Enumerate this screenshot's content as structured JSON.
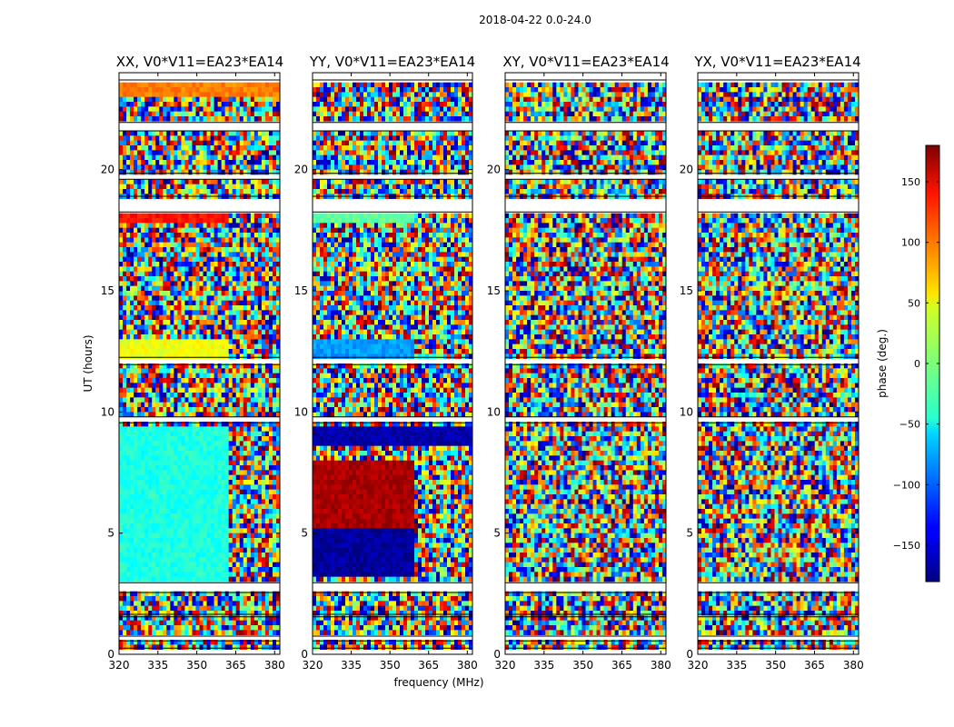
{
  "figure": {
    "suptitle": "2018-04-22 0.0-24.0"
  },
  "chart_data": [
    {
      "type": "heatmap",
      "title": "XX, V0*V11=EA23*EA14",
      "xlabel": "",
      "ylabel": "UT (hours)",
      "xlim": [
        320,
        382
      ],
      "ylim": [
        0,
        24
      ],
      "xticks": [
        320,
        335,
        350,
        365,
        380
      ],
      "yticks": [
        0,
        5,
        10,
        15,
        20
      ],
      "coherent_bands": [
        {
          "ut": [
            12.3,
            13.1
          ],
          "phase_deg": 40,
          "freq_max": 362
        },
        {
          "ut": [
            17.9,
            18.2
          ],
          "phase_deg": 130,
          "freq_max": 362
        },
        {
          "ut": [
            2.9,
            9.5
          ],
          "phase_deg": -35,
          "freq_max": 362
        },
        {
          "ut": [
            23.1,
            23.6
          ],
          "phase_deg": 90,
          "freq_max": 382
        }
      ]
    },
    {
      "type": "heatmap",
      "title": "YY, V0*V11=EA23*EA14",
      "xlabel": "frequency (MHz)",
      "ylabel": "",
      "xlim": [
        320,
        382
      ],
      "ylim": [
        0,
        24
      ],
      "xticks": [
        320,
        335,
        350,
        365,
        380
      ],
      "yticks": [
        0,
        5,
        10,
        15,
        20
      ],
      "coherent_bands": [
        {
          "ut": [
            12.3,
            13.1
          ],
          "phase_deg": -80,
          "freq_max": 360
        },
        {
          "ut": [
            17.9,
            18.2
          ],
          "phase_deg": -10,
          "freq_max": 360
        },
        {
          "ut": [
            5.2,
            8.0
          ],
          "phase_deg": 165,
          "freq_max": 360
        },
        {
          "ut": [
            3.2,
            5.2
          ],
          "phase_deg": -170,
          "freq_max": 360
        },
        {
          "ut": [
            8.6,
            9.5
          ],
          "phase_deg": -165,
          "freq_max": 382
        }
      ]
    },
    {
      "type": "heatmap",
      "title": "XY, V0*V11=EA23*EA14",
      "xlabel": "",
      "ylabel": "",
      "xlim": [
        320,
        382
      ],
      "ylim": [
        0,
        24
      ],
      "xticks": [
        320,
        335,
        350,
        365,
        380
      ],
      "yticks": [
        0,
        5,
        10,
        15,
        20
      ],
      "coherent_bands": []
    },
    {
      "type": "heatmap",
      "title": "YX, V0*V11=EA23*EA14",
      "xlabel": "",
      "ylabel": "",
      "xlim": [
        320,
        382
      ],
      "ylim": [
        0,
        24
      ],
      "xticks": [
        320,
        335,
        350,
        365,
        380
      ],
      "yticks": [
        0,
        5,
        10,
        15,
        20
      ],
      "coherent_bands": []
    }
  ],
  "colorbar": {
    "label": "phase (deg.)",
    "range": [
      -180,
      180
    ],
    "ticks": [
      150,
      100,
      50,
      0,
      -50,
      -100,
      -150
    ],
    "tick_labels": [
      "150",
      "100",
      "50",
      "0",
      "−50",
      "−100",
      "−150"
    ],
    "colormap": "jet"
  },
  "flagged_ut_ranges": [
    [
      0.0,
      0.25
    ],
    [
      0.55,
      0.75
    ],
    [
      1.55,
      1.65
    ],
    [
      2.55,
      2.95
    ],
    [
      9.55,
      9.8
    ],
    [
      11.95,
      12.25
    ],
    [
      18.25,
      18.9
    ],
    [
      19.6,
      19.85
    ],
    [
      21.6,
      21.95
    ],
    [
      23.7,
      24.0
    ]
  ],
  "colors": {
    "background": "#ffffff",
    "frame": "#000000",
    "flagged": "#ffffff"
  }
}
